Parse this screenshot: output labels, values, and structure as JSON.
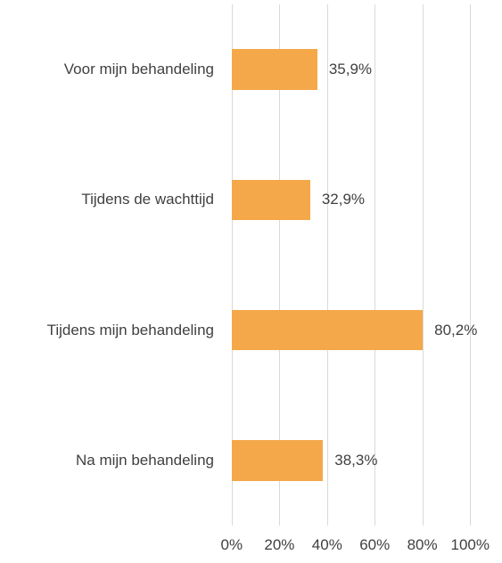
{
  "chart_data": {
    "type": "bar",
    "orientation": "horizontal",
    "categories": [
      "Voor mijn behandeling",
      "Tijdens de wachttijd",
      "Tijdens mijn behandeling",
      "Na mijn behandeling"
    ],
    "values": [
      35.9,
      32.9,
      80.2,
      38.3
    ],
    "value_labels": [
      "35,9%",
      "32,9%",
      "80,2%",
      "38,3%"
    ],
    "color": "#f4a84a",
    "xlim": [
      0,
      100
    ],
    "xticks": [
      {
        "value": 0,
        "label": "0%"
      },
      {
        "value": 20,
        "label": "20%"
      },
      {
        "value": 40,
        "label": "40%"
      },
      {
        "value": 60,
        "label": "60%"
      },
      {
        "value": 80,
        "label": "80%"
      },
      {
        "value": 100,
        "label": "100%"
      }
    ],
    "grid": true
  }
}
